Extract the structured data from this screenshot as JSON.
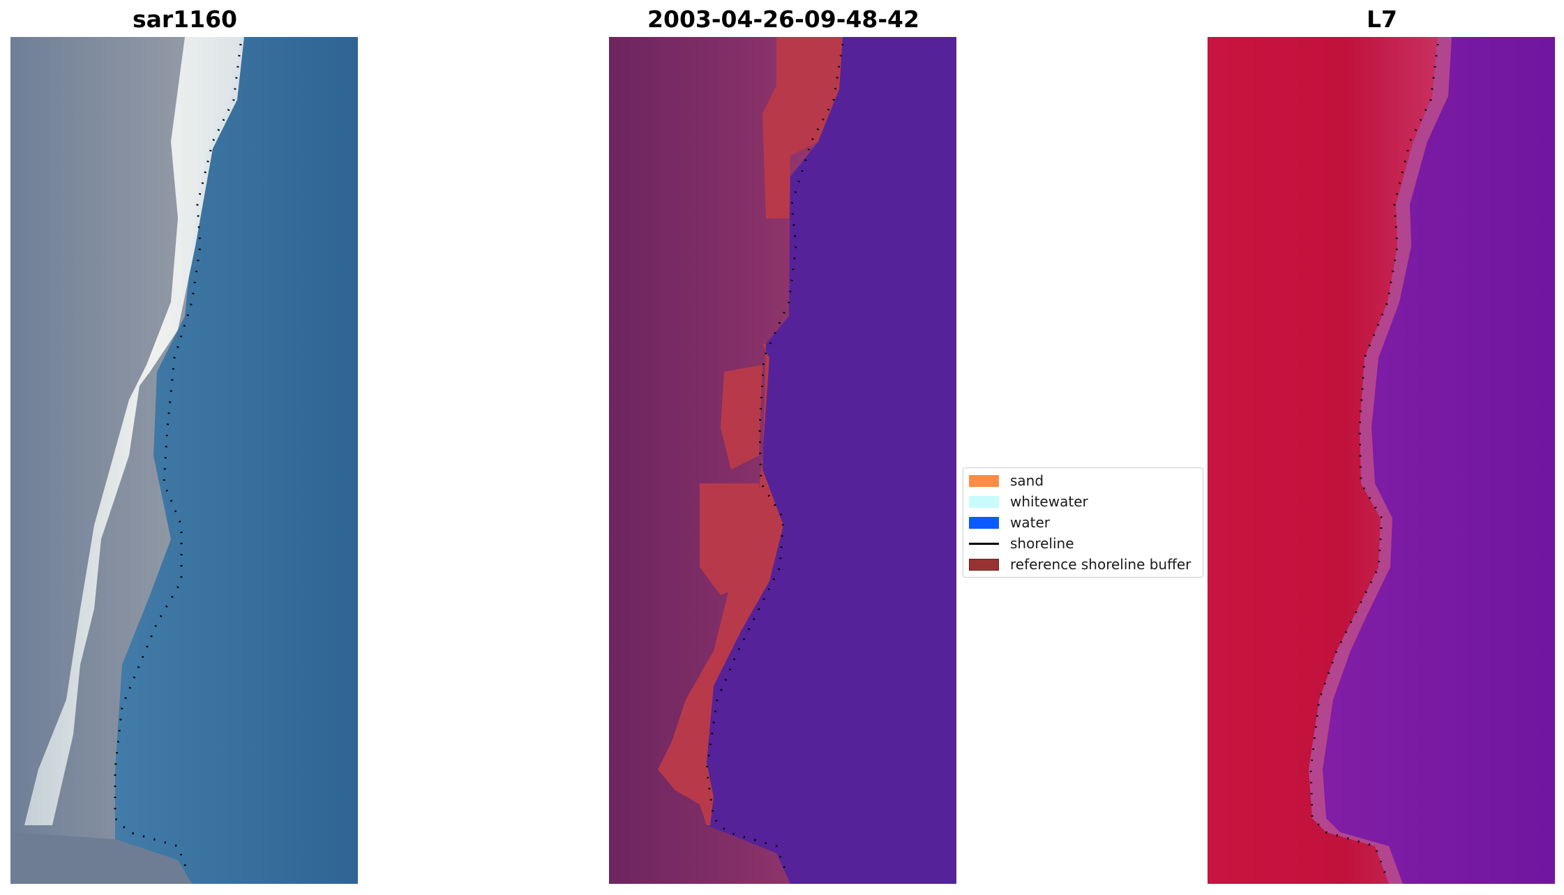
{
  "panels": [
    {
      "title": "sar1160",
      "kind": "rgb"
    },
    {
      "title": "2003-04-26-09-48-42",
      "kind": "classified"
    },
    {
      "title": "L7",
      "kind": "mndwi"
    }
  ],
  "legend": {
    "items": [
      {
        "label": "sand",
        "color": "#ff8c42",
        "type": "patch"
      },
      {
        "label": "whitewater",
        "color": "#c8fcfc",
        "type": "patch"
      },
      {
        "label": "water",
        "color": "#0a5bff",
        "type": "patch"
      },
      {
        "label": "shoreline",
        "color": "#000000",
        "type": "line"
      },
      {
        "label": "reference shoreline buffer",
        "color": "#993333",
        "type": "patch"
      }
    ]
  },
  "colors": {
    "water_rgb": "#3a75a4",
    "land_rgb": "#7b8699",
    "beach_rgb": "#e9ecea",
    "land_classified": "#7a2a63",
    "buffer_classified": "#b83a4a",
    "water_classified": "#55229a",
    "land_mndwi": "#c0123c",
    "water_mndwi": "#7a1aa0"
  }
}
